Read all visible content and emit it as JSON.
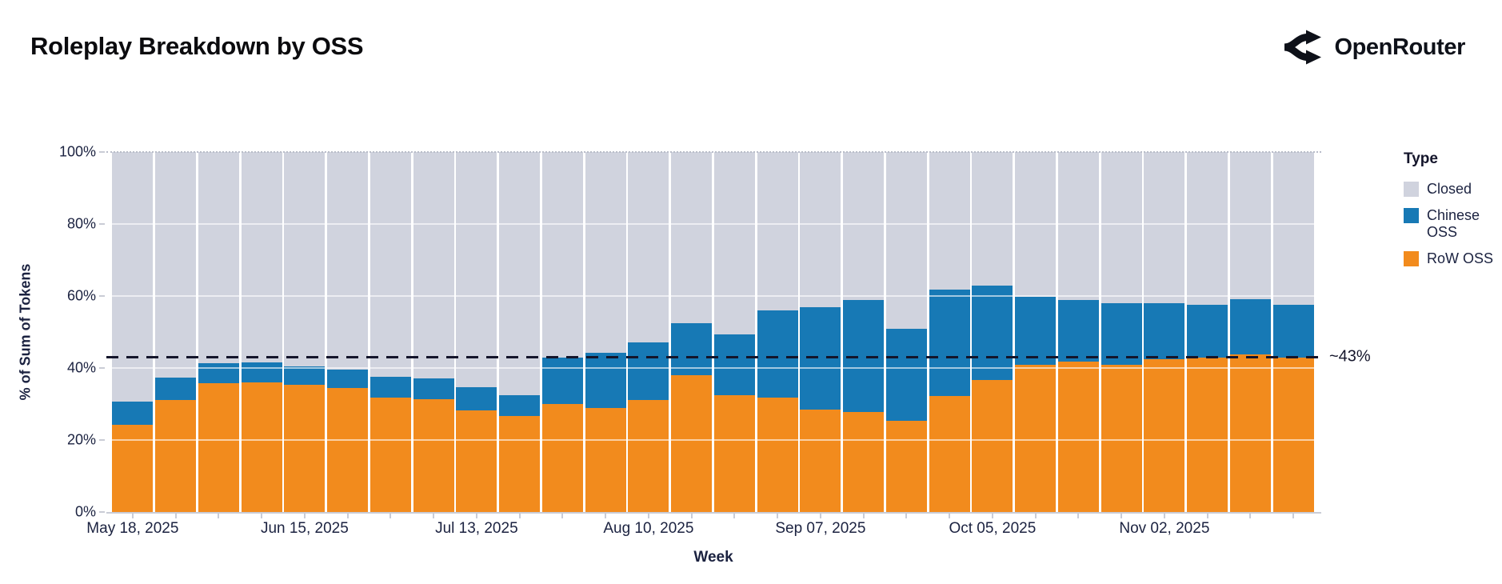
{
  "header": {
    "title": "Roleplay Breakdown by OSS",
    "brand": "OpenRouter"
  },
  "annotation": "~43%",
  "chart_data": {
    "type": "bar",
    "stacked": true,
    "title": "Roleplay Breakdown by OSS",
    "xlabel": "Week",
    "ylabel": "% of Sum of Tokens",
    "ylim": [
      0,
      100
    ],
    "grid": "horizontal-white-over-bars",
    "y_ticks": [
      0,
      20,
      40,
      60,
      80,
      100
    ],
    "y_tick_labels": [
      "0%",
      "20%",
      "40%",
      "60%",
      "80%",
      "100%"
    ],
    "x_tick_label_every": 4,
    "x_tick_labels_visible": [
      "May 18, 2025",
      "Jun 15, 2025",
      "Jul 13, 2025",
      "Aug 10, 2025",
      "Sep 07, 2025",
      "Oct 05, 2025",
      "Nov 02, 2025"
    ],
    "categories": [
      "May 18, 2025",
      "May 25, 2025",
      "Jun 01, 2025",
      "Jun 08, 2025",
      "Jun 15, 2025",
      "Jun 22, 2025",
      "Jun 29, 2025",
      "Jul 06, 2025",
      "Jul 13, 2025",
      "Jul 20, 2025",
      "Jul 27, 2025",
      "Aug 03, 2025",
      "Aug 10, 2025",
      "Aug 17, 2025",
      "Aug 24, 2025",
      "Aug 31, 2025",
      "Sep 07, 2025",
      "Sep 14, 2025",
      "Sep 21, 2025",
      "Sep 28, 2025",
      "Oct 05, 2025",
      "Oct 12, 2025",
      "Oct 19, 2025",
      "Oct 26, 2025",
      "Nov 02, 2025",
      "Nov 09, 2025",
      "Nov 16, 2025",
      "Nov 23, 2025"
    ],
    "series": [
      {
        "name": "RoW OSS",
        "color": "#f28b1d",
        "values": [
          24.2,
          31.1,
          35.8,
          36.0,
          35.3,
          34.4,
          31.8,
          31.4,
          28.3,
          26.7,
          30.0,
          28.8,
          31.2,
          37.9,
          32.5,
          31.8,
          28.5,
          27.7,
          25.4,
          32.3,
          36.6,
          40.8,
          41.7,
          41.0,
          42.4,
          43.0,
          43.8,
          43.0
        ]
      },
      {
        "name": "Chinese OSS",
        "color": "#1779b5",
        "values": [
          6.5,
          6.3,
          5.5,
          5.6,
          5.1,
          5.2,
          5.8,
          5.8,
          6.3,
          5.7,
          13.0,
          15.5,
          16.0,
          14.6,
          16.8,
          24.3,
          28.5,
          31.2,
          25.5,
          29.4,
          26.3,
          18.9,
          17.2,
          17.0,
          15.7,
          14.6,
          15.4,
          14.5
        ]
      },
      {
        "name": "Closed",
        "color": "#d0d3de",
        "values": [
          69.3,
          62.6,
          58.7,
          58.4,
          59.6,
          60.4,
          62.4,
          62.8,
          65.4,
          67.6,
          57.0,
          55.7,
          52.8,
          47.5,
          50.7,
          43.9,
          43.0,
          41.1,
          49.1,
          38.3,
          37.1,
          40.3,
          41.1,
          42.0,
          41.9,
          42.4,
          40.8,
          42.5
        ]
      }
    ],
    "reference_line": {
      "value": 43,
      "label": "~43%",
      "style": "dashed",
      "color": "#14152b"
    },
    "legend": {
      "title": "Type",
      "position": "right",
      "order": [
        "Closed",
        "Chinese OSS",
        "RoW OSS"
      ]
    }
  }
}
